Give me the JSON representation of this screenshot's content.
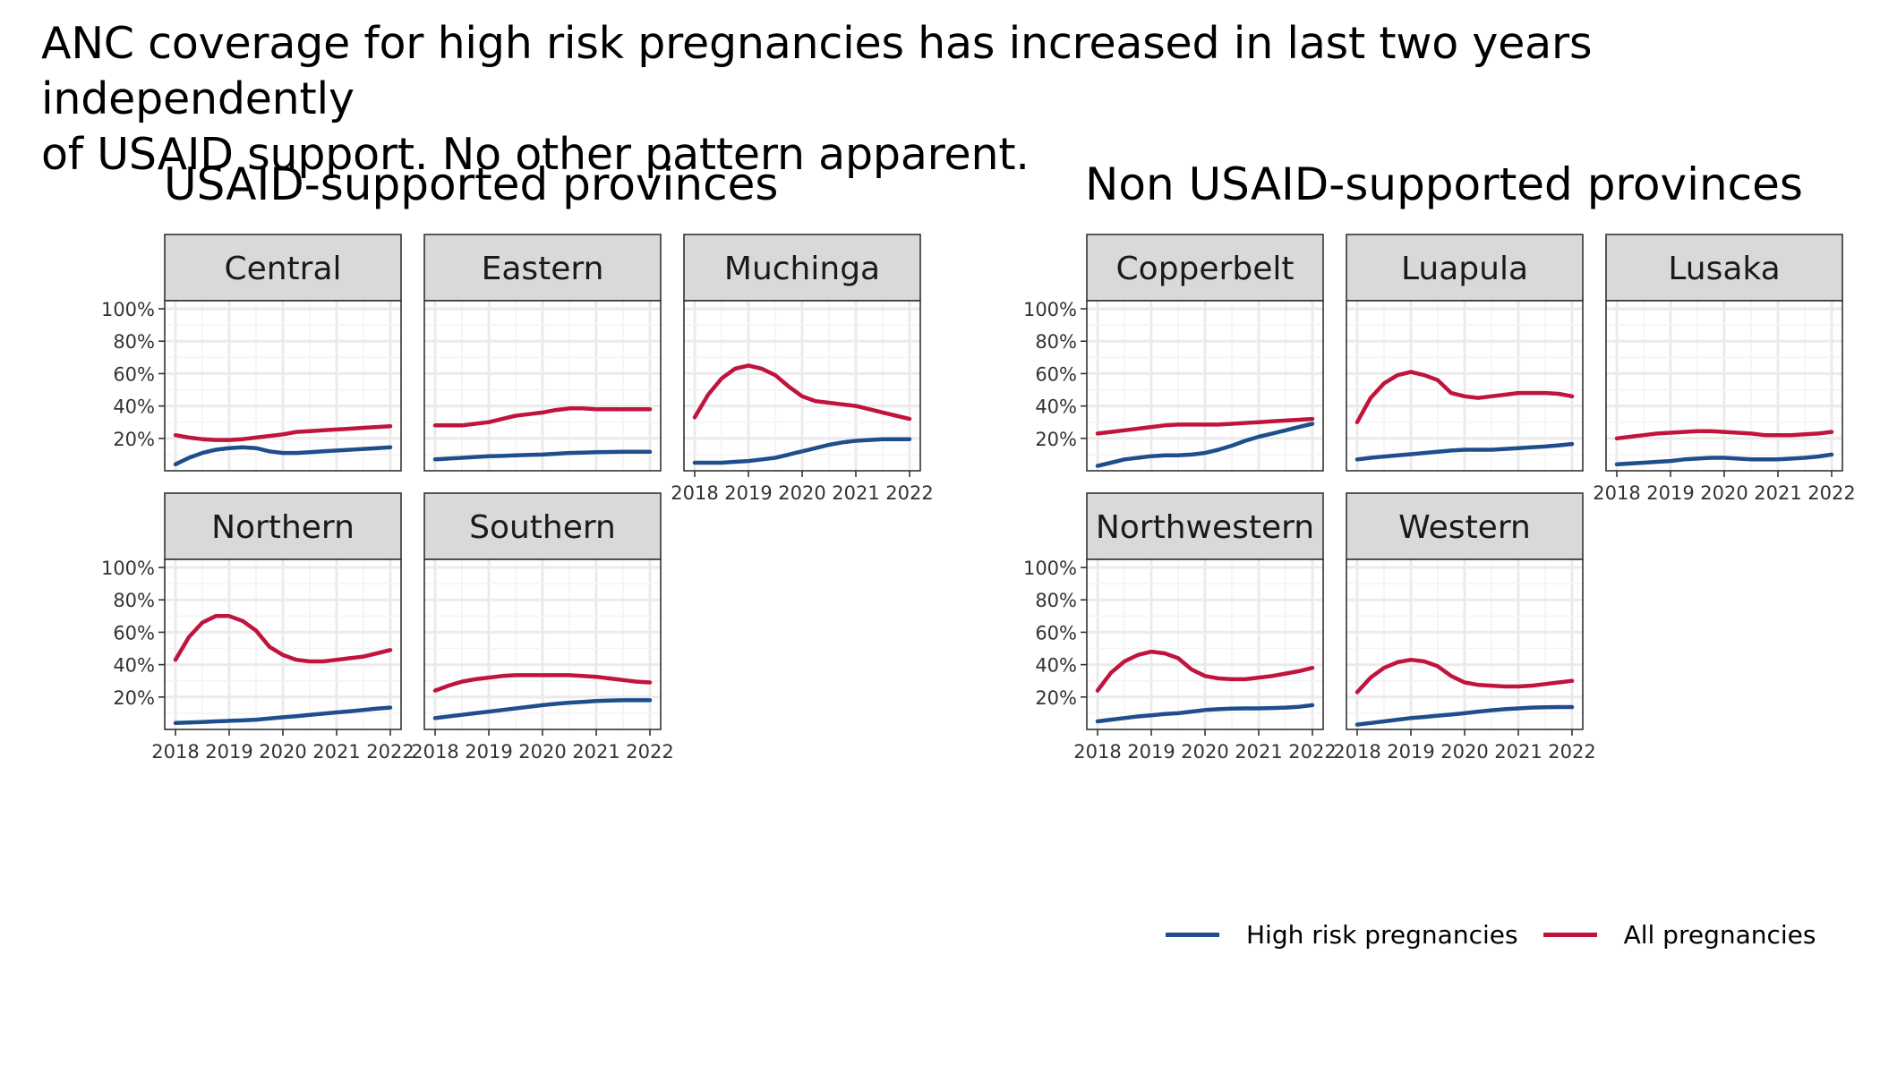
{
  "headline": "ANC coverage for high risk pregnancies has increased in last two years independently\nof USAID support. No other pattern apparent.",
  "groups": [
    {
      "title": "USAID-supported provinces"
    },
    {
      "title": "Non USAID-supported provinces"
    }
  ],
  "legend": {
    "items": [
      {
        "label": "High risk pregnancies",
        "color": "#1f4e8c"
      },
      {
        "label": "All pregnancies",
        "color": "#c0143c"
      }
    ]
  },
  "chart_data": {
    "type": "line",
    "x_ticks": [
      "2018",
      "2019",
      "2020",
      "2021",
      "2022"
    ],
    "y_ticks": [
      "20%",
      "40%",
      "60%",
      "80%",
      "100%"
    ],
    "xlim": [
      2018,
      2022
    ],
    "ylim": [
      0,
      105
    ],
    "grid": true,
    "legend_position": "bottom-right",
    "x": [
      2018.0,
      2018.25,
      2018.5,
      2018.75,
      2019.0,
      2019.25,
      2019.5,
      2019.75,
      2020.0,
      2020.25,
      2020.5,
      2020.75,
      2021.0,
      2021.25,
      2021.5,
      2021.75,
      2022.0
    ],
    "panels": [
      {
        "group": "USAID-supported provinces",
        "name": "Central",
        "series": [
          {
            "name": "High risk pregnancies",
            "values": [
              4,
              8,
              11,
              13,
              14,
              14.5,
              14,
              12,
              11,
              11,
              11.5,
              12,
              12.5,
              13,
              13.5,
              14,
              14.5
            ]
          },
          {
            "name": "All pregnancies",
            "values": [
              22,
              20.5,
              19.5,
              19,
              19,
              19.5,
              20.5,
              21.5,
              22.5,
              24,
              24.5,
              25,
              25.5,
              26,
              26.5,
              27,
              27.5
            ]
          }
        ]
      },
      {
        "group": "USAID-supported provinces",
        "name": "Eastern",
        "series": [
          {
            "name": "High risk pregnancies",
            "values": [
              7,
              7.5,
              8,
              8.5,
              9,
              9.2,
              9.5,
              9.8,
              10,
              10.5,
              11,
              11.2,
              11.5,
              11.6,
              11.7,
              11.7,
              11.7
            ]
          },
          {
            "name": "All pregnancies",
            "values": [
              28,
              28,
              28,
              29,
              30,
              32,
              34,
              35,
              36,
              37.5,
              38.5,
              38.5,
              38,
              38,
              38,
              38,
              38
            ]
          }
        ]
      },
      {
        "group": "USAID-supported provinces",
        "name": "Muchinga",
        "series": [
          {
            "name": "High risk pregnancies",
            "values": [
              5,
              5,
              5,
              5.5,
              6,
              7,
              8,
              10,
              12,
              14,
              16,
              17.5,
              18.5,
              19,
              19.5,
              19.5,
              19.5
            ]
          },
          {
            "name": "All pregnancies",
            "values": [
              33,
              47,
              57,
              63,
              65,
              63,
              59,
              52,
              46,
              43,
              42,
              41,
              40,
              38,
              36,
              34,
              32
            ]
          }
        ]
      },
      {
        "group": "USAID-supported provinces",
        "name": "Northern",
        "series": [
          {
            "name": "High risk pregnancies",
            "values": [
              4,
              4.3,
              4.6,
              5,
              5.3,
              5.6,
              6,
              6.8,
              7.5,
              8.2,
              9,
              9.7,
              10.5,
              11.2,
              12,
              12.8,
              13.5
            ]
          },
          {
            "name": "All pregnancies",
            "values": [
              43,
              57,
              66,
              70,
              70,
              67,
              61,
              51,
              46,
              43,
              42,
              42,
              43,
              44,
              45,
              47,
              49
            ]
          }
        ]
      },
      {
        "group": "USAID-supported provinces",
        "name": "Southern",
        "series": [
          {
            "name": "High risk pregnancies",
            "values": [
              7,
              8,
              9,
              10,
              11,
              12,
              13,
              14,
              15,
              15.8,
              16.5,
              17,
              17.5,
              17.8,
              18,
              18,
              18
            ]
          },
          {
            "name": "All pregnancies",
            "values": [
              24,
              27,
              29.5,
              31,
              32,
              33,
              33.5,
              33.5,
              33.5,
              33.5,
              33.5,
              33,
              32.5,
              31.5,
              30.5,
              29.5,
              29
            ]
          }
        ]
      },
      {
        "group": "Non USAID-supported provinces",
        "name": "Copperbelt",
        "series": [
          {
            "name": "High risk pregnancies",
            "values": [
              3,
              5,
              7,
              8,
              9,
              9.5,
              9.5,
              10,
              11,
              13,
              15.5,
              18.5,
              21,
              23,
              25,
              27,
              29
            ]
          },
          {
            "name": "All pregnancies",
            "values": [
              23,
              24,
              25,
              26,
              27,
              28,
              28.5,
              28.5,
              28.5,
              28.5,
              29,
              29.5,
              30,
              30.5,
              31,
              31.5,
              32
            ]
          }
        ]
      },
      {
        "group": "Non USAID-supported provinces",
        "name": "Luapula",
        "series": [
          {
            "name": "High risk pregnancies",
            "values": [
              7,
              8,
              8.8,
              9.5,
              10.2,
              11,
              11.7,
              12.5,
              13,
              13,
              13,
              13.5,
              14,
              14.5,
              15,
              15.7,
              16.5
            ]
          },
          {
            "name": "All pregnancies",
            "values": [
              30,
              45,
              54,
              59,
              61,
              59,
              56,
              48,
              46,
              45,
              46,
              47,
              48,
              48,
              48,
              47.5,
              46
            ]
          }
        ]
      },
      {
        "group": "Non USAID-supported provinces",
        "name": "Lusaka",
        "series": [
          {
            "name": "High risk pregnancies",
            "values": [
              4,
              4.5,
              5,
              5.5,
              6,
              7,
              7.5,
              8,
              8,
              7.5,
              7,
              7,
              7,
              7.5,
              8,
              8.8,
              10
            ]
          },
          {
            "name": "All pregnancies",
            "values": [
              20,
              21,
              22,
              23,
              23.5,
              24,
              24.5,
              24.5,
              24,
              23.5,
              23,
              22,
              22,
              22,
              22.5,
              23,
              24
            ]
          }
        ]
      },
      {
        "group": "Non USAID-supported provinces",
        "name": "Northwestern",
        "series": [
          {
            "name": "High risk pregnancies",
            "values": [
              5,
              6,
              7,
              8,
              8.7,
              9.5,
              10,
              11,
              12,
              12.5,
              12.8,
              13,
              13,
              13.2,
              13.5,
              14,
              15
            ]
          },
          {
            "name": "All pregnancies",
            "values": [
              24,
              35,
              42,
              46,
              48,
              47,
              44,
              37,
              33,
              31.5,
              31,
              31,
              32,
              33,
              34.5,
              36,
              38
            ]
          }
        ]
      },
      {
        "group": "Non USAID-supported provinces",
        "name": "Western",
        "series": [
          {
            "name": "High risk pregnancies",
            "values": [
              3,
              4,
              5,
              6,
              7,
              7.7,
              8.5,
              9.2,
              10,
              11,
              11.8,
              12.5,
              13,
              13.5,
              13.7,
              13.8,
              13.8
            ]
          },
          {
            "name": "All pregnancies",
            "values": [
              23,
              32,
              38,
              41.5,
              43,
              42,
              39,
              33,
              29,
              27.5,
              27,
              26.5,
              26.5,
              27,
              28,
              29,
              30
            ]
          }
        ]
      }
    ]
  }
}
